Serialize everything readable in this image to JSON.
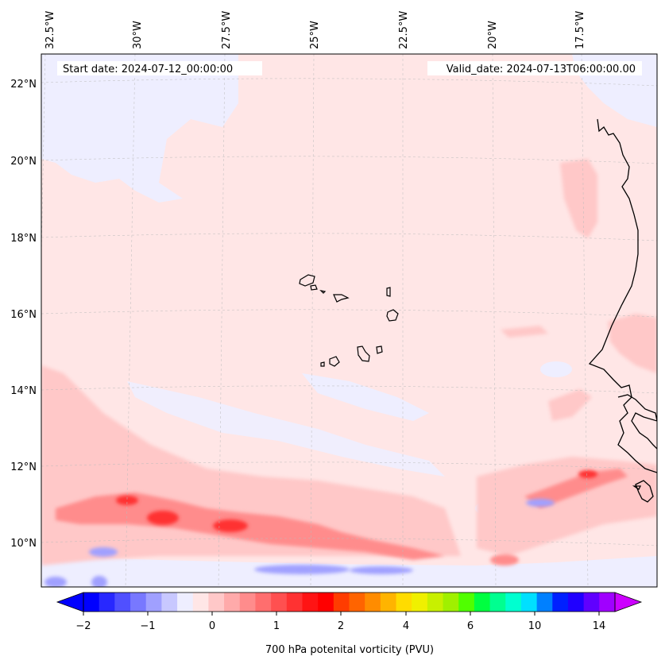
{
  "header": {
    "start_date": "Start date: 2024-07-12_00:00:00",
    "valid_date": "Valid_date: 2024-07-13T06:00:00.00"
  },
  "map": {
    "projection": "lambert-conic",
    "region": "Cape Verde / West Africa, eastern tropical North Atlantic",
    "lon_ticks": [
      "32.5°W",
      "30°W",
      "27.5°W",
      "25°W",
      "22.5°W",
      "20°W",
      "17.5°W"
    ],
    "lat_ticks": [
      "22°N",
      "20°N",
      "18°N",
      "16°N",
      "14°N",
      "12°N",
      "10°N"
    ],
    "field": "700 hPa potential vorticity",
    "background_color": "#ffe6e6",
    "coastline_color": "#000000"
  },
  "colorbar": {
    "label": "700 hPa potenital vorticity (PVU)",
    "tick_labels": [
      "−2",
      "−1",
      "0",
      "1",
      "2",
      "4",
      "6",
      "10",
      "14"
    ],
    "colors": [
      "#0000ff",
      "#2828ff",
      "#5050ff",
      "#7878ff",
      "#a0a0ff",
      "#c8c8ff",
      "#eeeeff",
      "#ffe6e6",
      "#ffc8c8",
      "#ffaaaa",
      "#ff8c8c",
      "#ff6e6e",
      "#ff5050",
      "#ff3232",
      "#ff1414",
      "#ff0000",
      "#ff3c00",
      "#ff6400",
      "#ff8c00",
      "#ffb400",
      "#ffdc00",
      "#f0f000",
      "#c8f000",
      "#a0f000",
      "#50ff00",
      "#00ff40",
      "#00ff90",
      "#00ffd0",
      "#00e0ff",
      "#0080ff",
      "#0020ff",
      "#2000ff",
      "#6000ff",
      "#a000ff"
    ],
    "extend": "both"
  }
}
